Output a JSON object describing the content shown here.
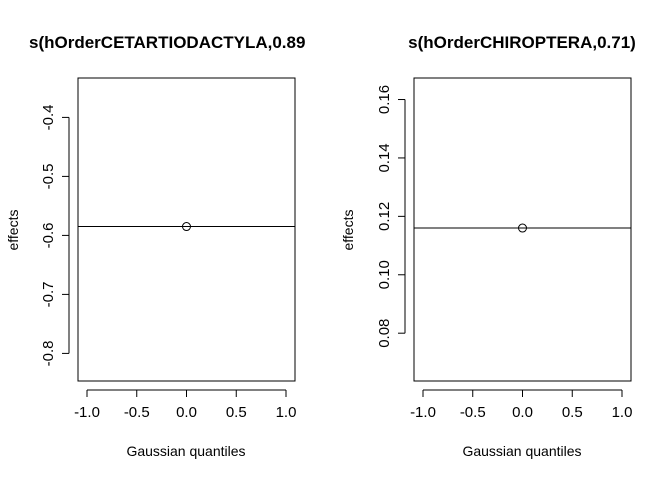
{
  "chart_data": [
    {
      "type": "scatter",
      "title": "s(hOrderCETARTIODACTYLA,0.89",
      "xlabel": "Gaussian quantiles",
      "ylabel": "effects",
      "xlim": [
        -1.0,
        1.0
      ],
      "ylim": [
        -0.84,
        -0.34
      ],
      "xticks": [
        "-1.0",
        "-0.5",
        "0.0",
        "0.5",
        "1.0"
      ],
      "yticks": [
        "-0.8",
        "-0.7",
        "-0.6",
        "-0.5",
        "-0.4"
      ],
      "points": [
        {
          "x": 0.0,
          "y": -0.585
        }
      ],
      "reference_line_y": -0.585,
      "grid": false
    },
    {
      "type": "scatter",
      "title": "s(hOrderCHIROPTERA,0.71)",
      "xlabel": "Gaussian quantiles",
      "ylabel": "effects",
      "xlim": [
        -1.0,
        1.0
      ],
      "ylim": [
        0.065,
        0.166
      ],
      "xticks": [
        "-1.0",
        "-0.5",
        "0.0",
        "0.5",
        "1.0"
      ],
      "yticks": [
        "0.08",
        "0.10",
        "0.12",
        "0.14",
        "0.16"
      ],
      "points": [
        {
          "x": 0.0,
          "y": 0.116
        }
      ],
      "reference_line_y": 0.116,
      "grid": false
    }
  ]
}
